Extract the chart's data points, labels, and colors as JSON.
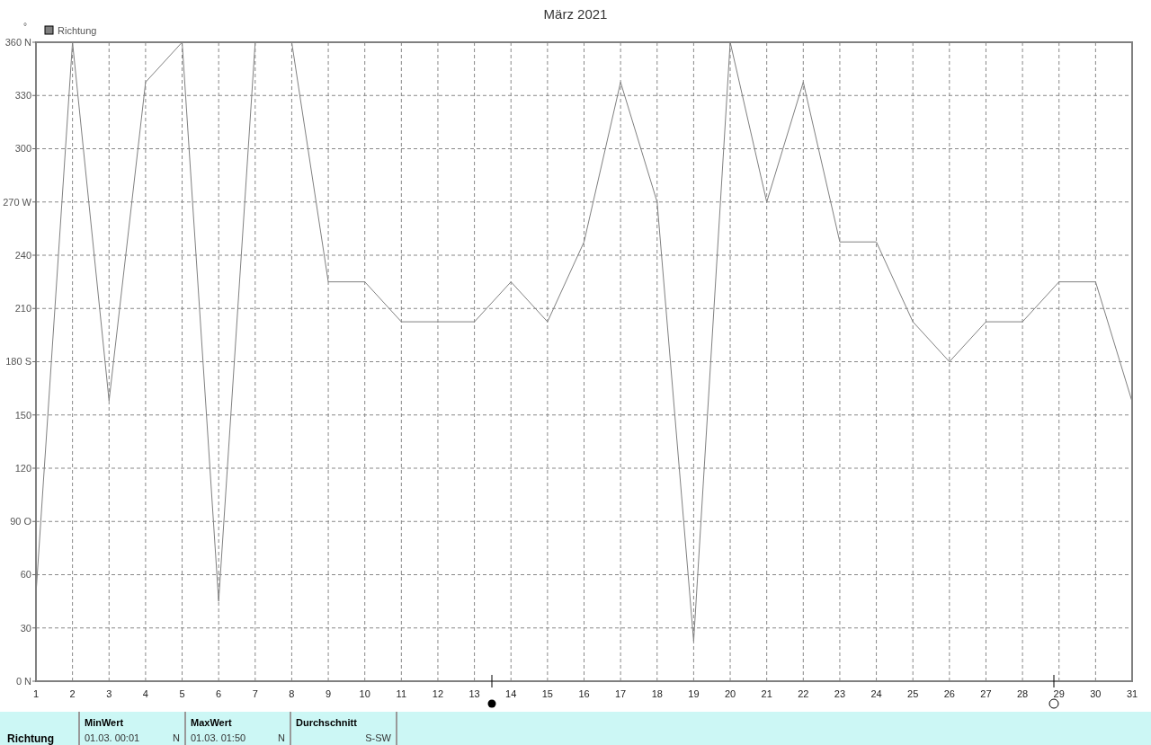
{
  "chart_data": {
    "type": "line",
    "title": "März 2021",
    "ylabel": "°",
    "x": [
      1,
      2,
      3,
      4,
      5,
      6,
      7,
      8,
      9,
      10,
      11,
      12,
      13,
      14,
      15,
      16,
      17,
      18,
      19,
      20,
      21,
      22,
      23,
      24,
      25,
      26,
      27,
      28,
      29,
      30,
      31
    ],
    "series": [
      {
        "name": "Richtung",
        "color": "#808080",
        "values": [
          49,
          360,
          158,
          337.5,
          360,
          45,
          360,
          360,
          225,
          225,
          202.5,
          202.5,
          202.5,
          225,
          202.5,
          247.5,
          337.5,
          270,
          22.5,
          360,
          270,
          337.5,
          247.5,
          247.5,
          202.5,
          180,
          202.5,
          202.5,
          225,
          225,
          157.5
        ]
      }
    ],
    "xlim": [
      1,
      31
    ],
    "xticks": [
      1,
      2,
      3,
      4,
      5,
      6,
      7,
      8,
      9,
      10,
      11,
      12,
      13,
      14,
      15,
      16,
      17,
      18,
      19,
      20,
      21,
      22,
      23,
      24,
      25,
      26,
      27,
      28,
      29,
      30,
      31
    ],
    "ylim": [
      0,
      360
    ],
    "yticks": [
      {
        "value": 0,
        "label": "0 N"
      },
      30,
      60,
      {
        "value": 90,
        "label": "90 O"
      },
      120,
      150,
      {
        "value": 180,
        "label": "180 S"
      },
      210,
      240,
      {
        "value": 270,
        "label": "270 W"
      },
      300,
      330,
      {
        "value": 360,
        "label": "360 N"
      }
    ],
    "grid": true,
    "legend": "top left",
    "marker": "none",
    "line_style": "solid",
    "annotations": [
      "Richtung",
      "MinWert",
      "01.03.  00:01",
      "N",
      "MaxWert",
      "01.03.  01:50",
      "N",
      "Durchschnitt",
      "S-SW"
    ]
  }
}
